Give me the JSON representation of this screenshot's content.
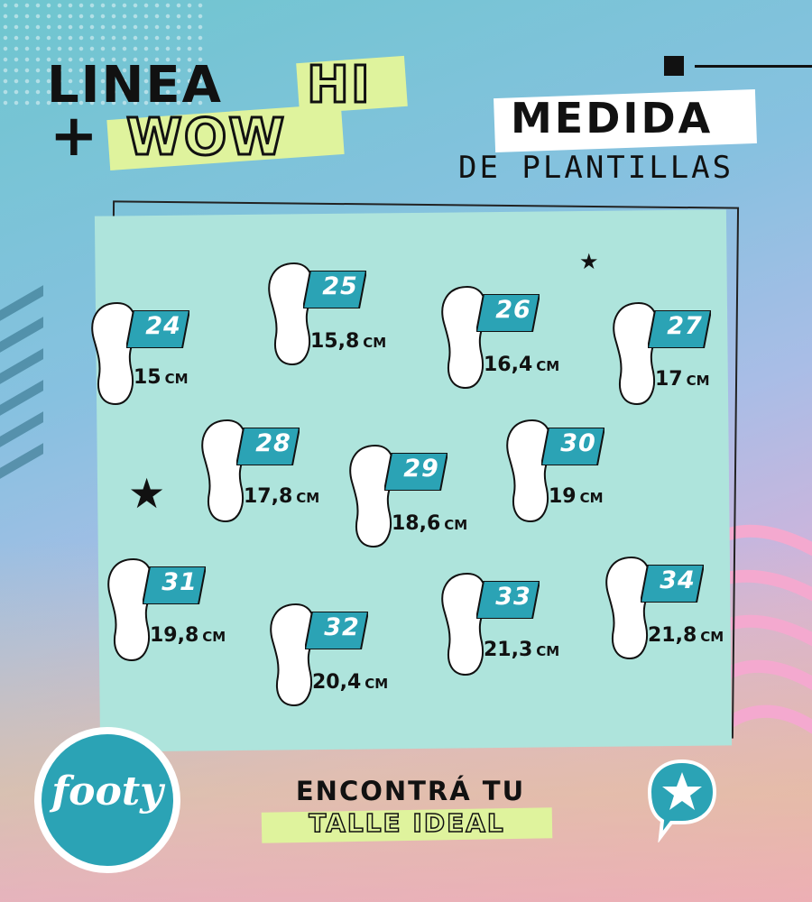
{
  "header": {
    "line1": "LINEA",
    "line1_highlight": "HI",
    "line2_prefix": "+",
    "line2_highlight": "WOW",
    "subtitle_main": "MEDIDA",
    "subtitle_sub": "DE PLANTILLAS"
  },
  "sizes": [
    {
      "size": "24",
      "length": "15",
      "unit": "CM"
    },
    {
      "size": "25",
      "length": "15,8",
      "unit": "CM"
    },
    {
      "size": "26",
      "length": "16,4",
      "unit": "CM"
    },
    {
      "size": "27",
      "length": "17",
      "unit": "CM"
    },
    {
      "size": "28",
      "length": "17,8",
      "unit": "CM"
    },
    {
      "size": "29",
      "length": "18,6",
      "unit": "CM"
    },
    {
      "size": "30",
      "length": "19",
      "unit": "CM"
    },
    {
      "size": "31",
      "length": "19,8",
      "unit": "CM"
    },
    {
      "size": "32",
      "length": "20,4",
      "unit": "CM"
    },
    {
      "size": "33",
      "length": "21,3",
      "unit": "CM"
    },
    {
      "size": "34",
      "length": "21,8",
      "unit": "CM"
    }
  ],
  "footer": {
    "logo_text": "footy",
    "cta_line1": "ENCONTRÁ TU",
    "cta_line2": "TALLE IDEAL",
    "badge_icon": "star-chat-icon"
  },
  "colors": {
    "accent_teal": "#2ba3b5",
    "highlight_green": "#dff39d",
    "card_bg": "#aee4dc"
  }
}
